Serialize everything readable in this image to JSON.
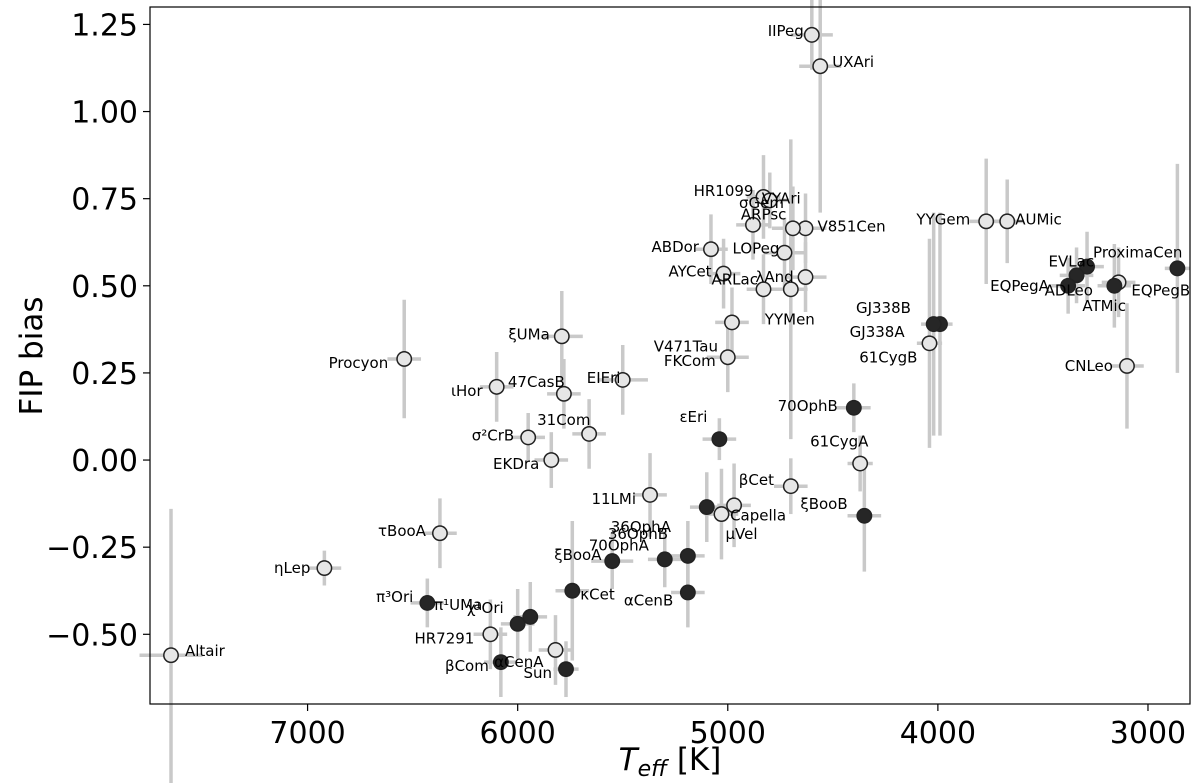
{
  "chart_data": {
    "type": "scatter",
    "title": "",
    "xlabel": "T_eff [K]",
    "xlabel_parts": {
      "main": "T",
      "sub": "eff",
      "unit": " [K]"
    },
    "ylabel": "FIP bias",
    "xlim": [
      7750,
      2800
    ],
    "ylim": [
      -0.7,
      1.3
    ],
    "x_inverted": true,
    "grid": false,
    "xticks": [
      7000,
      6000,
      5000,
      4000,
      3000
    ],
    "xtick_labels": [
      "7000",
      "6000",
      "5000",
      "4000",
      "3000"
    ],
    "yticks": [
      -0.5,
      -0.25,
      0.0,
      0.25,
      0.5,
      0.75,
      1.0,
      1.25
    ],
    "ytick_labels": [
      "−0.50",
      "−0.25",
      "0.00",
      "0.25",
      "0.50",
      "0.75",
      "1.00",
      "1.25"
    ],
    "colors": {
      "open": "#e6e6e6",
      "filled": "#262626",
      "errorbar": "#c9c9c9",
      "edge": "#222222"
    },
    "points": [
      {
        "label": "IIPeg",
        "teff": 4600,
        "fip": 1.22,
        "xerr": 100,
        "yerr": 0.1,
        "filled": false
      },
      {
        "label": "UXAri",
        "teff": 4560,
        "fip": 1.13,
        "xerr": 100,
        "yerr": 0.42,
        "filled": false
      },
      {
        "label": "HR1099",
        "teff": 4830,
        "fip": 0.755,
        "xerr": 80,
        "yerr": 0.12,
        "filled": false
      },
      {
        "label": "VYAri",
        "teff": 4800,
        "fip": 0.745,
        "xerr": 100,
        "yerr": 0.08,
        "filled": false
      },
      {
        "label": "σGem",
        "teff": 4880,
        "fip": 0.675,
        "xerr": 80,
        "yerr": 0.1,
        "filled": false
      },
      {
        "label": "V851Cen",
        "teff": 4630,
        "fip": 0.665,
        "xerr": 100,
        "yerr": 0.1,
        "filled": false
      },
      {
        "label": "ARPsc",
        "teff": 4690,
        "fip": 0.665,
        "xerr": 100,
        "yerr": 0.12,
        "filled": false
      },
      {
        "label": "LOPeg",
        "teff": 4730,
        "fip": 0.595,
        "xerr": 100,
        "yerr": 0.1,
        "filled": false
      },
      {
        "label": "ABDor",
        "teff": 5080,
        "fip": 0.605,
        "xerr": 80,
        "yerr": 0.1,
        "filled": false
      },
      {
        "label": "AYCet",
        "teff": 5020,
        "fip": 0.535,
        "xerr": 80,
        "yerr": 0.1,
        "filled": false
      },
      {
        "label": "λAnd",
        "teff": 4630,
        "fip": 0.525,
        "xerr": 100,
        "yerr": 0.1,
        "filled": false
      },
      {
        "label": "ARLac",
        "teff": 4830,
        "fip": 0.49,
        "xerr": 80,
        "yerr": 0.1,
        "filled": false
      },
      {
        "label": "YYMen",
        "teff": 4700,
        "fip": 0.49,
        "xerr": 80,
        "yerr": 0.43,
        "filled": false
      },
      {
        "label": "V471Tau",
        "teff": 4980,
        "fip": 0.395,
        "xerr": 80,
        "yerr": 0.1,
        "filled": false
      },
      {
        "label": "FKCom",
        "teff": 5000,
        "fip": 0.295,
        "xerr": 100,
        "yerr": 0.1,
        "filled": false
      },
      {
        "label": "YYGem",
        "teff": 3770,
        "fip": 0.685,
        "xerr": 80,
        "yerr": 0.18,
        "filled": false
      },
      {
        "label": "AUMic",
        "teff": 3670,
        "fip": 0.685,
        "xerr": 80,
        "yerr": 0.12,
        "filled": false
      },
      {
        "label": "GJ338B",
        "teff": 3990,
        "fip": 0.39,
        "xerr": 60,
        "yerr": 0.32,
        "filled": true
      },
      {
        "label": "GJ338A",
        "teff": 4020,
        "fip": 0.39,
        "xerr": 60,
        "yerr": 0.32,
        "filled": true
      },
      {
        "label": "61CygB",
        "teff": 4040,
        "fip": 0.335,
        "xerr": 60,
        "yerr": 0.3,
        "filled": false
      },
      {
        "label": "ProximaCen",
        "teff": 3290,
        "fip": 0.555,
        "xerr": 80,
        "yerr": 0.1,
        "filled": true
      },
      {
        "label": "EVLac",
        "teff": 3340,
        "fip": 0.53,
        "xerr": 80,
        "yerr": 0.08,
        "filled": true
      },
      {
        "label": "EQPegA",
        "teff": 3380,
        "fip": 0.5,
        "xerr": 80,
        "yerr": 0.08,
        "filled": true
      },
      {
        "label": "ADLeo",
        "teff": 3140,
        "fip": 0.51,
        "xerr": 80,
        "yerr": 0.1,
        "filled": false
      },
      {
        "label": "ATMic",
        "teff": 3160,
        "fip": 0.5,
        "xerr": 80,
        "yerr": 0.12,
        "filled": true
      },
      {
        "label": "EQPegB",
        "teff": 2860,
        "fip": 0.55,
        "xerr": 60,
        "yerr": 0.3,
        "filled": true
      },
      {
        "label": "CNLeo",
        "teff": 3100,
        "fip": 0.27,
        "xerr": 80,
        "yerr": 0.18,
        "filled": false
      },
      {
        "label": "ξUMa",
        "teff": 5790,
        "fip": 0.355,
        "xerr": 100,
        "yerr": 0.13,
        "filled": false
      },
      {
        "label": "Procyon",
        "teff": 6540,
        "fip": 0.29,
        "xerr": 80,
        "yerr": 0.17,
        "filled": false
      },
      {
        "label": "ιHor",
        "teff": 6100,
        "fip": 0.21,
        "xerr": 80,
        "yerr": 0.1,
        "filled": false
      },
      {
        "label": "47CasB",
        "teff": 5780,
        "fip": 0.19,
        "xerr": 80,
        "yerr": 0.1,
        "filled": false
      },
      {
        "label": "EIEri",
        "teff": 5500,
        "fip": 0.23,
        "xerr": 120,
        "yerr": 0.1,
        "filled": false
      },
      {
        "label": "70OphB",
        "teff": 4400,
        "fip": 0.15,
        "xerr": 80,
        "yerr": 0.07,
        "filled": true
      },
      {
        "label": "31Com",
        "teff": 5660,
        "fip": 0.075,
        "xerr": 80,
        "yerr": 0.1,
        "filled": false
      },
      {
        "label": "σ²CrB",
        "teff": 5950,
        "fip": 0.065,
        "xerr": 80,
        "yerr": 0.07,
        "filled": false
      },
      {
        "label": "εEri",
        "teff": 5040,
        "fip": 0.06,
        "xerr": 80,
        "yerr": 0.06,
        "filled": true
      },
      {
        "label": "EKDra",
        "teff": 5840,
        "fip": 0.0,
        "xerr": 80,
        "yerr": 0.08,
        "filled": false
      },
      {
        "label": "61CygA",
        "teff": 4370,
        "fip": -0.01,
        "xerr": 60,
        "yerr": 0.08,
        "filled": false
      },
      {
        "label": "11LMi",
        "teff": 5370,
        "fip": -0.1,
        "xerr": 80,
        "yerr": 0.12,
        "filled": false
      },
      {
        "label": "βCet",
        "teff": 4700,
        "fip": -0.075,
        "xerr": 80,
        "yerr": 0.08,
        "filled": false
      },
      {
        "label": "Capella",
        "teff": 4970,
        "fip": -0.13,
        "xerr": 80,
        "yerr": 0.12,
        "filled": false
      },
      {
        "label": "36OphA",
        "teff": 5100,
        "fip": -0.135,
        "xerr": 80,
        "yerr": 0.1,
        "filled": true
      },
      {
        "label": "μVel",
        "teff": 5030,
        "fip": -0.155,
        "xerr": 80,
        "yerr": 0.13,
        "filled": false
      },
      {
        "label": "ξBooB",
        "teff": 4350,
        "fip": -0.16,
        "xerr": 80,
        "yerr": 0.16,
        "filled": true
      },
      {
        "label": "τBooA",
        "teff": 6370,
        "fip": -0.21,
        "xerr": 80,
        "yerr": 0.1,
        "filled": false
      },
      {
        "label": "36OphB",
        "teff": 5190,
        "fip": -0.275,
        "xerr": 80,
        "yerr": 0.1,
        "filled": true
      },
      {
        "label": "70OphA",
        "teff": 5300,
        "fip": -0.285,
        "xerr": 80,
        "yerr": 0.08,
        "filled": true
      },
      {
        "label": "ξBooA",
        "teff": 5550,
        "fip": -0.29,
        "xerr": 100,
        "yerr": 0.08,
        "filled": true
      },
      {
        "label": "ηLep",
        "teff": 6920,
        "fip": -0.31,
        "xerr": 80,
        "yerr": 0.05,
        "filled": false
      },
      {
        "label": "κCet",
        "teff": 5740,
        "fip": -0.375,
        "xerr": 80,
        "yerr": 0.2,
        "filled": true
      },
      {
        "label": "αCenB",
        "teff": 5190,
        "fip": -0.38,
        "xerr": 80,
        "yerr": 0.1,
        "filled": true
      },
      {
        "label": "π³Ori",
        "teff": 6430,
        "fip": -0.41,
        "xerr": 80,
        "yerr": 0.07,
        "filled": true
      },
      {
        "label": "π¹UMa",
        "teff": 5940,
        "fip": -0.45,
        "xerr": 80,
        "yerr": 0.1,
        "filled": true
      },
      {
        "label": "χ¹Ori",
        "teff": 6000,
        "fip": -0.47,
        "xerr": 80,
        "yerr": 0.1,
        "filled": true
      },
      {
        "label": "HR7291",
        "teff": 6130,
        "fip": -0.5,
        "xerr": 80,
        "yerr": 0.1,
        "filled": false
      },
      {
        "label": "αCenA",
        "teff": 5820,
        "fip": -0.545,
        "xerr": 80,
        "yerr": 0.1,
        "filled": false
      },
      {
        "label": "Altair",
        "teff": 7650,
        "fip": -0.56,
        "xerr": 150,
        "yerr": 0.42,
        "filled": false
      },
      {
        "label": "βCom",
        "teff": 6080,
        "fip": -0.58,
        "xerr": 80,
        "yerr": 0.1,
        "filled": true
      },
      {
        "label": "Sun",
        "teff": 5770,
        "fip": -0.6,
        "xerr": 60,
        "yerr": 0.08,
        "filled": true
      }
    ]
  }
}
